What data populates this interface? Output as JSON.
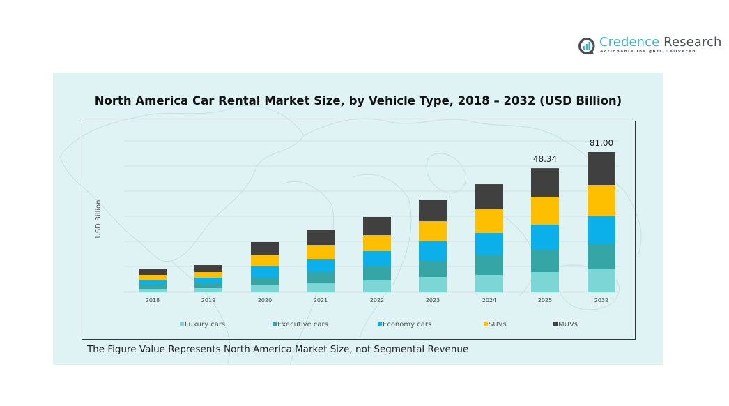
{
  "brand": {
    "name_part1": "Credence",
    "name_part2": " Research",
    "tagline": "Actionable Insights Delivered"
  },
  "footnote": "The Figure Value Represents North America Market Size, not Segmental Revenue",
  "chart_data": {
    "type": "bar",
    "stacked": true,
    "title": "North America Car Rental Market Size, by Vehicle Type, 2018 – 2032 (USD Billion)",
    "xlabel": "",
    "ylabel": "USD Billion",
    "grid": true,
    "legend_position": "bottom",
    "categories": [
      "2018",
      "2019",
      "2020",
      "2021",
      "2022",
      "2023",
      "2024",
      "2025",
      "2032"
    ],
    "series": [
      {
        "name": "Luxury cars",
        "color": "#7dd6d6",
        "values": [
          1.36,
          1.63,
          2.99,
          3.8,
          4.62,
          5.98,
          6.79,
          7.88,
          13.3
        ]
      },
      {
        "name": "Executive cars",
        "color": "#35a5a5",
        "values": [
          1.63,
          2.17,
          2.99,
          4.35,
          5.43,
          6.52,
          7.88,
          8.97,
          14.91
        ]
      },
      {
        "name": "Economy cars",
        "color": "#0bb0ea",
        "values": [
          1.63,
          1.9,
          4.08,
          4.89,
          5.98,
          7.34,
          8.42,
          9.51,
          16.12
        ]
      },
      {
        "name": "SUVs",
        "color": "#fdbf00",
        "values": [
          2.17,
          2.17,
          4.35,
          5.43,
          6.25,
          7.88,
          9.24,
          10.87,
          17.73
        ]
      },
      {
        "name": "MUVs",
        "color": "#404040",
        "values": [
          2.45,
          2.72,
          5.16,
          5.98,
          7.07,
          8.42,
          9.78,
          11.11,
          18.94
        ]
      }
    ],
    "totals": [
      9.24,
      10.59,
      19.57,
      24.45,
      29.35,
      36.14,
      42.11,
      48.34,
      81.0
    ],
    "data_labels": [
      {
        "category": "2025",
        "text": "48.34"
      },
      {
        "category": "2032",
        "text": "81.00"
      }
    ]
  }
}
